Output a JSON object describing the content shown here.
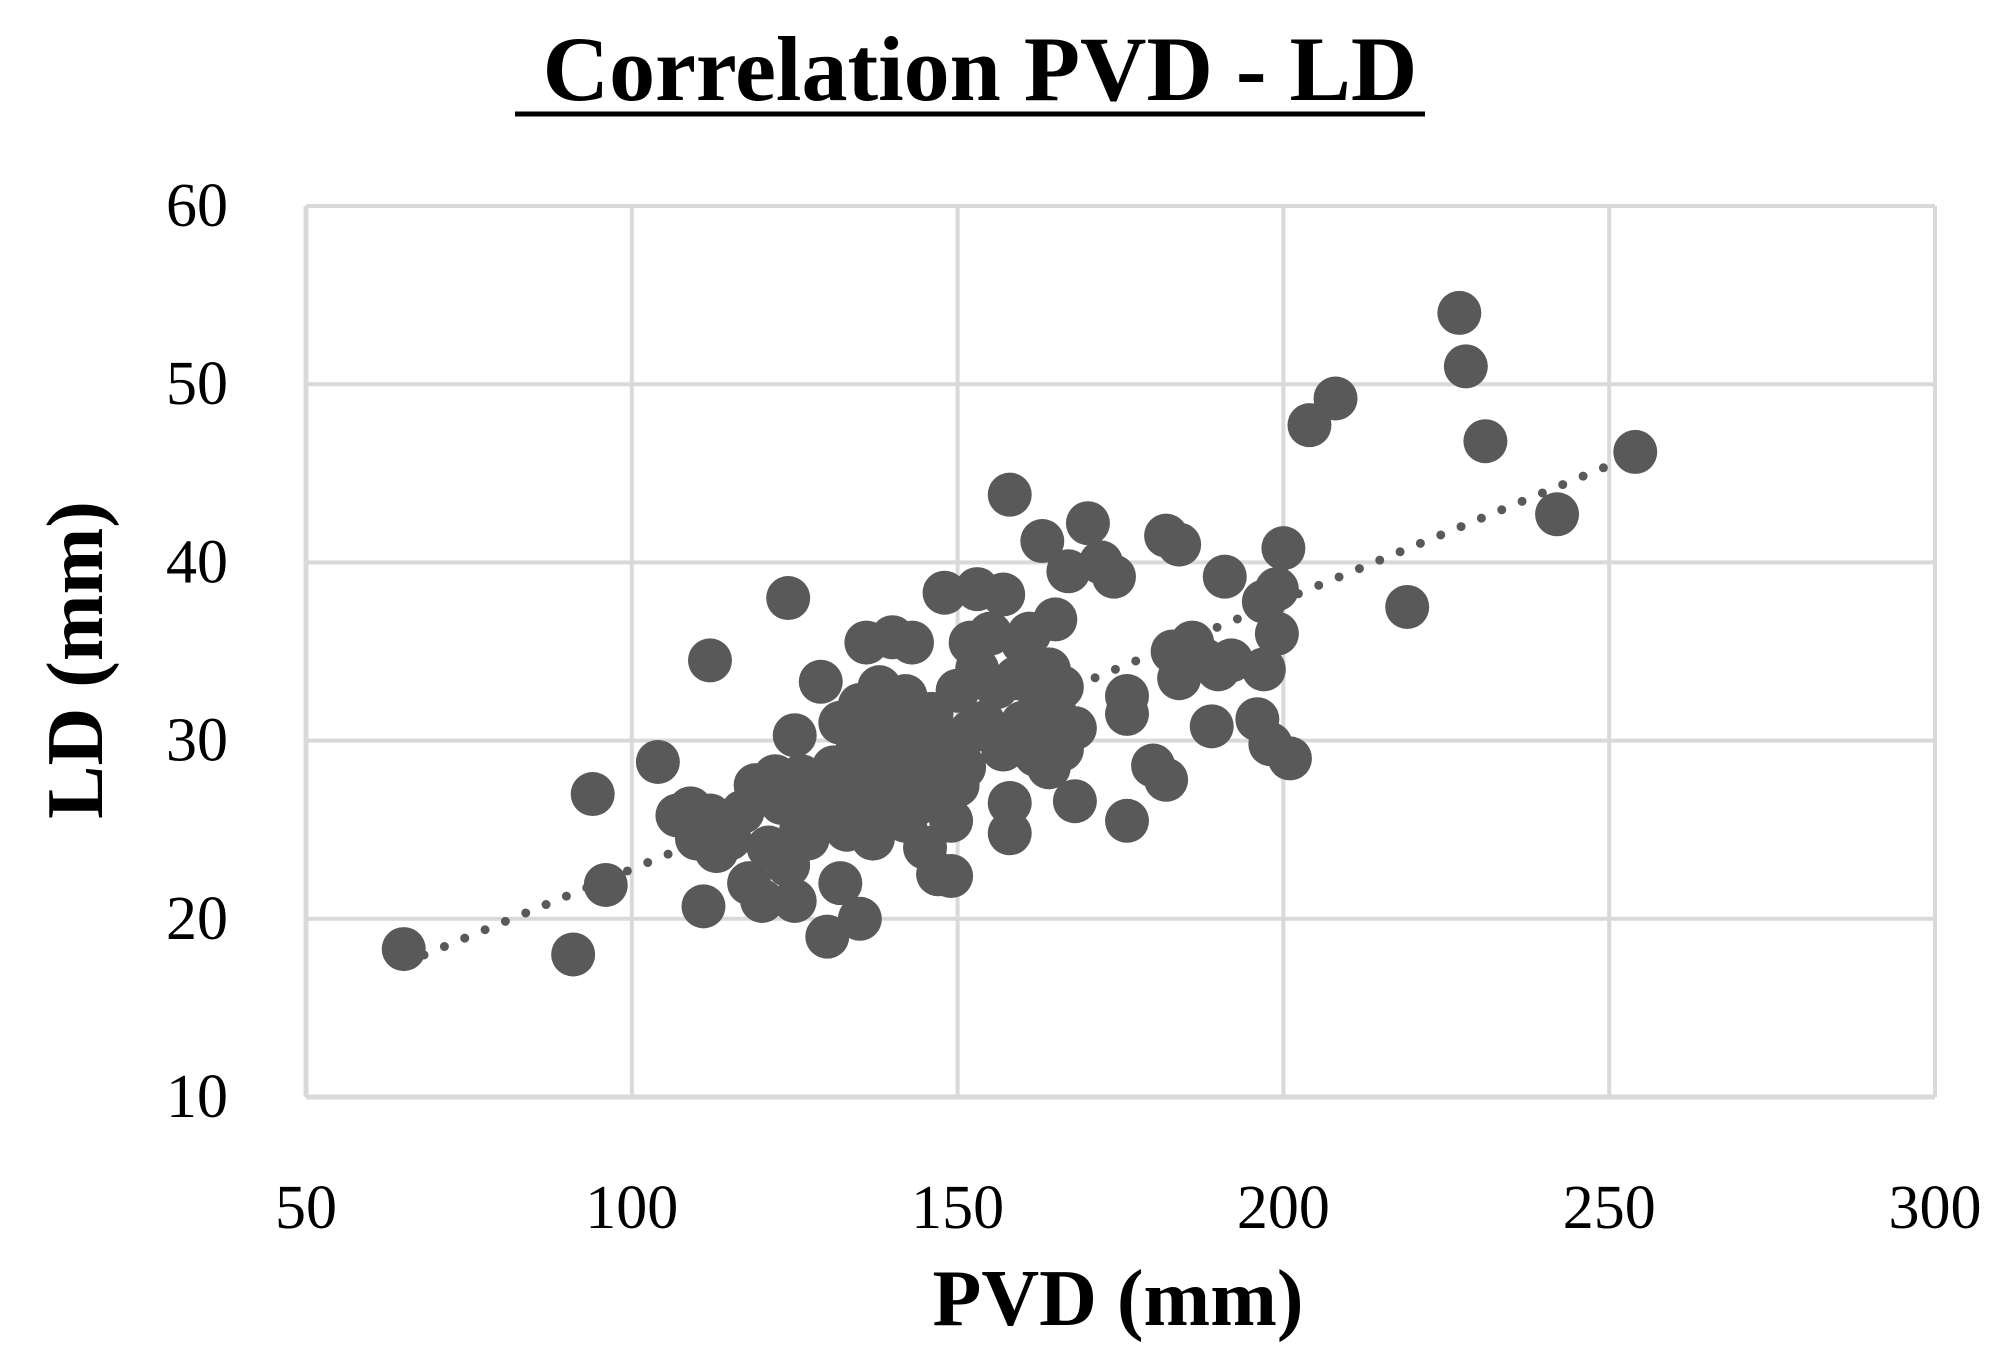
{
  "chart_data": {
    "type": "scatter",
    "title": "Correlation PVD - LD",
    "xlabel": "PVD (mm)",
    "ylabel": "LD (mm)",
    "xlim": [
      50,
      300
    ],
    "ylim": [
      10,
      60
    ],
    "xticks": [
      "50",
      "100",
      "150",
      "200",
      "250",
      "300"
    ],
    "yticks": [
      "10",
      "20",
      "30",
      "40",
      "50",
      "60"
    ],
    "grid": true,
    "marker_color": "#595959",
    "trendline": {
      "type": "linear",
      "style": "dotted",
      "color": "#595959",
      "x_start": 65,
      "x_end": 255,
      "y_start": 17.5,
      "y_end": 46.2
    },
    "series": [
      {
        "name": "PVD vs LD",
        "points": [
          [
            65,
            18.3
          ],
          [
            91,
            18
          ],
          [
            94,
            27
          ],
          [
            96,
            21.9
          ],
          [
            104,
            28.8
          ],
          [
            107,
            25.8
          ],
          [
            109,
            26.2
          ],
          [
            110,
            24.5
          ],
          [
            111,
            20.7
          ],
          [
            112,
            34.5
          ],
          [
            112,
            25.8
          ],
          [
            113,
            23.8
          ],
          [
            115,
            24.5
          ],
          [
            117,
            26
          ],
          [
            118,
            22
          ],
          [
            119,
            27.5
          ],
          [
            120,
            21
          ],
          [
            121,
            24
          ],
          [
            122,
            28
          ],
          [
            123,
            26.5
          ],
          [
            124,
            38
          ],
          [
            124,
            23
          ],
          [
            125,
            30.3
          ],
          [
            125,
            21
          ],
          [
            126,
            25
          ],
          [
            126,
            28
          ],
          [
            127,
            24.5
          ],
          [
            128,
            27
          ],
          [
            129,
            33.3
          ],
          [
            130,
            26
          ],
          [
            130,
            19
          ],
          [
            131,
            28.5
          ],
          [
            132,
            31
          ],
          [
            132,
            22
          ],
          [
            133,
            25
          ],
          [
            134,
            29
          ],
          [
            134,
            27.5
          ],
          [
            135,
            20
          ],
          [
            135,
            32
          ],
          [
            136,
            35.5
          ],
          [
            136,
            26.5
          ],
          [
            137,
            30
          ],
          [
            137,
            24.5
          ],
          [
            138,
            28
          ],
          [
            138,
            33
          ],
          [
            139,
            31.5
          ],
          [
            139,
            26
          ],
          [
            140,
            35.8
          ],
          [
            140,
            29
          ],
          [
            141,
            27
          ],
          [
            141,
            31
          ],
          [
            142,
            32.5
          ],
          [
            142,
            25.5
          ],
          [
            143,
            28.5
          ],
          [
            143,
            35.5
          ],
          [
            144,
            30
          ],
          [
            144,
            26.5
          ],
          [
            145,
            24
          ],
          [
            145,
            29.5
          ],
          [
            146,
            27
          ],
          [
            146,
            31.5
          ],
          [
            147,
            28
          ],
          [
            147,
            22.5
          ],
          [
            148,
            38.3
          ],
          [
            148,
            30
          ],
          [
            149,
            25.5
          ],
          [
            149,
            22.4
          ],
          [
            150,
            32.8
          ],
          [
            150,
            27.5
          ],
          [
            151,
            28.5
          ],
          [
            152,
            35.5
          ],
          [
            152,
            30.5
          ],
          [
            153,
            34
          ],
          [
            153,
            38.5
          ],
          [
            154,
            31
          ],
          [
            155,
            36
          ],
          [
            156,
            33
          ],
          [
            157,
            38.2
          ],
          [
            157,
            29.5
          ],
          [
            158,
            26.5
          ],
          [
            158,
            24.8
          ],
          [
            158,
            43.8
          ],
          [
            159,
            33.5
          ],
          [
            160,
            35.5
          ],
          [
            160,
            31
          ],
          [
            161,
            30
          ],
          [
            161,
            36
          ],
          [
            162,
            33
          ],
          [
            162,
            29.2
          ],
          [
            163,
            41.2
          ],
          [
            163,
            32
          ],
          [
            164,
            34
          ],
          [
            164,
            28.5
          ],
          [
            165,
            31.5
          ],
          [
            165,
            36.8
          ],
          [
            166,
            33
          ],
          [
            166,
            29.5
          ],
          [
            167,
            39.5
          ],
          [
            168,
            30.7
          ],
          [
            168,
            26.6
          ],
          [
            170,
            42.2
          ],
          [
            172,
            40
          ],
          [
            174,
            39.2
          ],
          [
            176,
            32.5
          ],
          [
            176,
            31.5
          ],
          [
            176,
            25.5
          ],
          [
            180,
            28.6
          ],
          [
            182,
            41.5
          ],
          [
            182,
            27.8
          ],
          [
            183,
            35
          ],
          [
            184,
            41
          ],
          [
            184,
            33.5
          ],
          [
            186,
            35.5
          ],
          [
            188,
            34.5
          ],
          [
            189,
            30.8
          ],
          [
            190,
            34
          ],
          [
            191,
            39.2
          ],
          [
            192,
            34.5
          ],
          [
            196,
            31.2
          ],
          [
            197,
            34
          ],
          [
            197,
            37.8
          ],
          [
            198,
            29.8
          ],
          [
            199,
            36
          ],
          [
            199,
            38.5
          ],
          [
            200,
            40.8
          ],
          [
            201,
            29
          ],
          [
            204,
            47.7
          ],
          [
            208,
            49.2
          ],
          [
            219,
            37.5
          ],
          [
            227,
            54
          ],
          [
            228,
            51
          ],
          [
            231,
            46.8
          ],
          [
            242,
            42.7
          ],
          [
            254,
            46.2
          ]
        ]
      }
    ]
  }
}
